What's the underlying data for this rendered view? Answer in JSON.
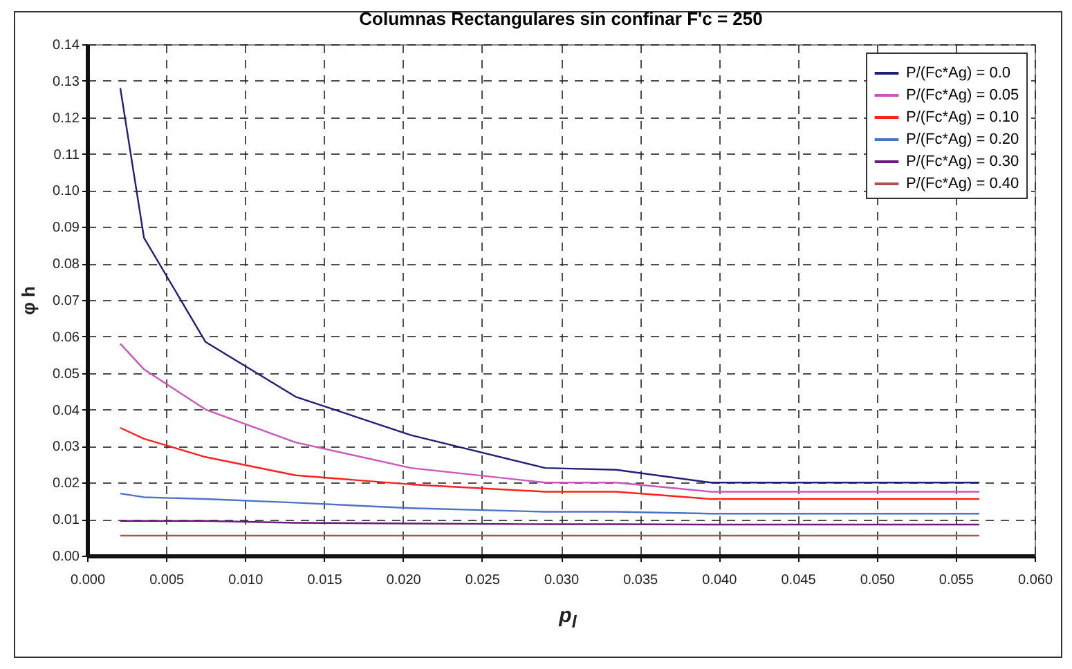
{
  "chart_data": {
    "type": "line",
    "title": "Columnas Rectangulares sin confinar F'c = 250",
    "xlabel": "p$_{l}$",
    "ylabel": "φ h",
    "x": [
      0.0021,
      0.0036,
      0.0075,
      0.0132,
      0.0205,
      0.029,
      0.0335,
      0.0395,
      0.0565
    ],
    "series": [
      {
        "name": "P/(Fc*Ag) = 0.0",
        "color": "#1f1f7a",
        "values": [
          0.128,
          0.087,
          0.0585,
          0.0435,
          0.033,
          0.024,
          0.0235,
          0.02,
          0.02
        ]
      },
      {
        "name": "P/(Fc*Ag) = 0.05",
        "color": "#cc55bb",
        "values": [
          0.058,
          0.051,
          0.04,
          0.031,
          0.024,
          0.02,
          0.02,
          0.0175,
          0.0175
        ]
      },
      {
        "name": "P/(Fc*Ag) = 0.10",
        "color": "#ff2020",
        "values": [
          0.035,
          0.032,
          0.027,
          0.022,
          0.0195,
          0.0175,
          0.0175,
          0.0155,
          0.0155
        ]
      },
      {
        "name": "P/(Fc*Ag) = 0.20",
        "color": "#4f73c4",
        "values": [
          0.017,
          0.016,
          0.0155,
          0.0145,
          0.013,
          0.012,
          0.012,
          0.0115,
          0.0115
        ]
      },
      {
        "name": "P/(Fc*Ag) = 0.30",
        "color": "#6a1a7a",
        "values": [
          0.0095,
          0.0095,
          0.0095,
          0.009,
          0.0088,
          0.0086,
          0.0086,
          0.0085,
          0.0085
        ]
      },
      {
        "name": "P/(Fc*Ag) = 0.40",
        "color": "#b05050",
        "values": [
          0.0055,
          0.0055,
          0.0055,
          0.0055,
          0.0055,
          0.0055,
          0.0055,
          0.0055,
          0.0055
        ]
      }
    ],
    "xlim": [
      0,
      0.06
    ],
    "xticks": [
      {
        "value": 0,
        "label": "0.000"
      },
      {
        "value": 0.005,
        "label": "0.005"
      },
      {
        "value": 0.01,
        "label": "0.010"
      },
      {
        "value": 0.015,
        "label": "0.015"
      },
      {
        "value": 0.02,
        "label": "0.020"
      },
      {
        "value": 0.025,
        "label": "0.025"
      },
      {
        "value": 0.03,
        "label": "0.030"
      },
      {
        "value": 0.035,
        "label": "0.035"
      },
      {
        "value": 0.04,
        "label": "0.040"
      },
      {
        "value": 0.045,
        "label": "0.045"
      },
      {
        "value": 0.05,
        "label": "0.050"
      },
      {
        "value": 0.055,
        "label": "0.055"
      },
      {
        "value": 0.06,
        "label": "0.060"
      }
    ],
    "ylim": [
      0,
      0.14
    ],
    "yticks": [
      {
        "value": 0,
        "label": "0.00"
      },
      {
        "value": 0.01,
        "label": "0.01"
      },
      {
        "value": 0.02,
        "label": "0.02"
      },
      {
        "value": 0.03,
        "label": "0.03"
      },
      {
        "value": 0.04,
        "label": "0.04"
      },
      {
        "value": 0.05,
        "label": "0.05"
      },
      {
        "value": 0.06,
        "label": "0.06"
      },
      {
        "value": 0.07,
        "label": "0.07"
      },
      {
        "value": 0.08,
        "label": "0.08"
      },
      {
        "value": 0.09,
        "label": "0.09"
      },
      {
        "value": 0.1,
        "label": "0.10"
      },
      {
        "value": 0.11,
        "label": "0.11"
      },
      {
        "value": 0.12,
        "label": "0.12"
      },
      {
        "value": 0.13,
        "label": "0.13"
      },
      {
        "value": 0.14,
        "label": "0.14"
      }
    ],
    "grid": true,
    "legend": "top right",
    "marker": "none",
    "line_style": "solid"
  }
}
